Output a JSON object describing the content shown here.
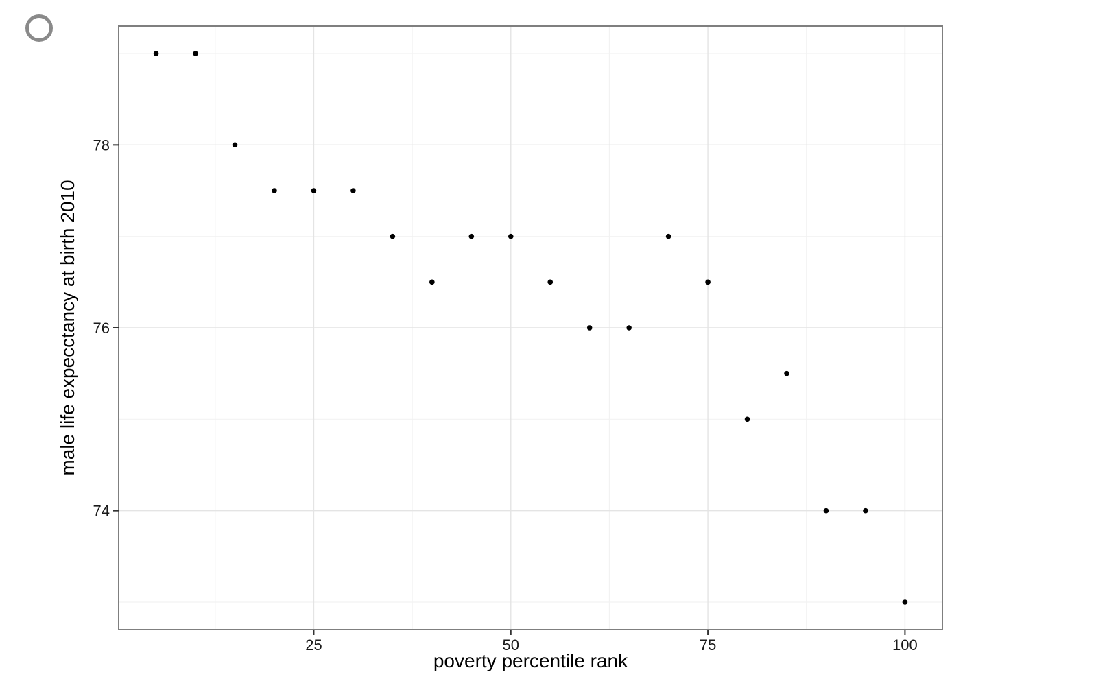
{
  "page": {
    "background": "#ffffff"
  },
  "controls": {
    "radio_circle": {
      "icon": "circle-outline",
      "checked": false,
      "color": "#8a8a8a"
    }
  },
  "chart_data": {
    "type": "scatter",
    "title": "",
    "xlabel": "poverty percentile rank",
    "ylabel": "male life expecctancy at birth 2010",
    "x": [
      5,
      10,
      15,
      20,
      25,
      30,
      35,
      40,
      45,
      50,
      55,
      60,
      65,
      70,
      75,
      80,
      85,
      90,
      95,
      100
    ],
    "y": [
      79,
      79,
      78,
      77.5,
      77.5,
      77.5,
      77,
      76.5,
      77,
      77,
      76.5,
      76,
      76,
      77,
      76.5,
      75,
      75.5,
      74,
      74,
      73
    ],
    "xlim": [
      0.25,
      104.75
    ],
    "ylim": [
      72.7,
      79.3
    ],
    "x_major_ticks": [
      25,
      50,
      75,
      100
    ],
    "x_tick_labels": [
      "25",
      "50",
      "75",
      "100"
    ],
    "y_major_ticks": [
      74,
      76,
      78
    ],
    "y_tick_labels": [
      "74",
      "76",
      "78"
    ],
    "x_minor_ticks": [
      12.5,
      37.5,
      62.5,
      87.5
    ],
    "y_minor_ticks": [
      73,
      75,
      77,
      79
    ],
    "grid": "major+minor",
    "legend": "none",
    "point_color": "#000000",
    "point_radius": 3.8,
    "colors": {
      "panel_background": "#ffffff",
      "panel_border": "#7f7f7f",
      "grid_major": "#e4e4e4",
      "grid_minor": "#f2f2f2",
      "tick_mark": "#333333",
      "tick_label": "#1a1a1a",
      "axis_title": "#000000"
    }
  }
}
